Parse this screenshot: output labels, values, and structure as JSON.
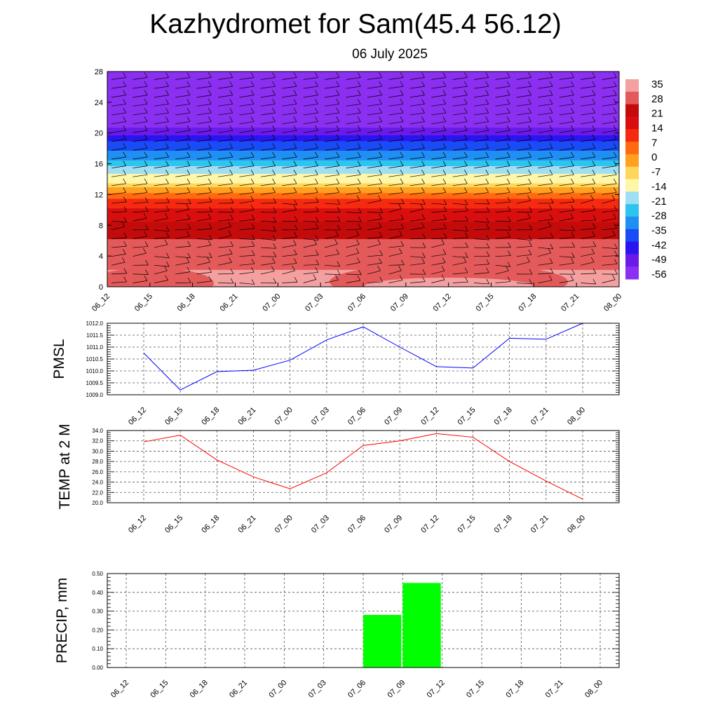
{
  "title": "Kazhydromet for Sam(45.4 56.12)",
  "subtitle": "06 July 2025",
  "x_ticks": [
    "06_12",
    "06_15",
    "06_18",
    "06_21",
    "07_00",
    "07_03",
    "07_06",
    "07_09",
    "07_12",
    "07_15",
    "07_18",
    "07_21",
    "08_00"
  ],
  "chart_data": [
    {
      "type": "heatmap",
      "name": "upper-air temperature cross-section with wind barbs",
      "x": [
        "06_12",
        "06_15",
        "06_18",
        "06_21",
        "07_00",
        "07_03",
        "07_06",
        "07_09",
        "07_12",
        "07_15",
        "07_18",
        "07_21",
        "08_00"
      ],
      "y_ticks": [
        0,
        4,
        8,
        12,
        16,
        20,
        24,
        28
      ],
      "ylim": [
        0,
        28
      ],
      "colorbar": {
        "labels": [
          35,
          28,
          21,
          14,
          7,
          0,
          -7,
          -14,
          -21,
          -28,
          -35,
          -42,
          -49,
          -56
        ],
        "range": [
          -60,
          39
        ],
        "colors": [
          "#8b2ff0",
          "#6a1be8",
          "#2a14f0",
          "#1a4cf5",
          "#1f8ff2",
          "#2dc4f0",
          "#9fdff3",
          "#fff7a8",
          "#ffd55a",
          "#ffa020",
          "#ff6a10",
          "#f52a10",
          "#d90f0f",
          "#c40b0b",
          "#e45a5a",
          "#f4a0a0"
        ]
      },
      "levels_description": "temperature decreasing with height; barbs on 3-hourly columns"
    },
    {
      "type": "line",
      "ylabel": "PMSL",
      "x": [
        "06_12",
        "06_15",
        "06_18",
        "06_21",
        "07_00",
        "07_03",
        "07_06",
        "07_09",
        "07_12",
        "07_15",
        "07_18",
        "07_21",
        "08_00"
      ],
      "y_ticks": [
        "1009.0",
        "1009.5",
        "1010.0",
        "1010.5",
        "1011.0",
        "1011.5",
        "1012.0"
      ],
      "ylim": [
        1009.0,
        1012.0
      ],
      "series": [
        {
          "values": [
            1010.75,
            1009.2,
            1009.97,
            1010.03,
            1010.45,
            1011.3,
            1011.85,
            1011.0,
            1010.18,
            1010.12,
            1011.37,
            1011.33,
            1012.0
          ],
          "color": "#0000ff"
        }
      ]
    },
    {
      "type": "line",
      "ylabel": "TEMP at 2 M",
      "x": [
        "06_12",
        "06_15",
        "06_18",
        "06_21",
        "07_00",
        "07_03",
        "07_06",
        "07_09",
        "07_12",
        "07_15",
        "07_18",
        "07_21",
        "08_00"
      ],
      "y_ticks": [
        "20.0",
        "22.0",
        "24.0",
        "26.0",
        "28.0",
        "30.0",
        "32.0",
        "34.0"
      ],
      "ylim": [
        20.0,
        34.0
      ],
      "series": [
        {
          "values": [
            31.8,
            33.1,
            28.3,
            25.0,
            22.7,
            25.8,
            31.1,
            32.0,
            33.4,
            32.7,
            28.0,
            24.2,
            20.7
          ],
          "color": "#ff0000"
        }
      ]
    },
    {
      "type": "bar",
      "ylabel": "PRECIP, mm",
      "x": [
        "06_12",
        "06_15",
        "06_18",
        "06_21",
        "07_00",
        "07_03",
        "07_06",
        "07_09",
        "07_12",
        "07_15",
        "07_18",
        "07_21",
        "08_00"
      ],
      "y_ticks": [
        "0.00",
        "0.10",
        "0.20",
        "0.30",
        "0.40",
        "0.50"
      ],
      "ylim": [
        0,
        0.5
      ],
      "series": [
        {
          "values": [
            0,
            0,
            0,
            0,
            0,
            0,
            0,
            0.28,
            0.45,
            0,
            0,
            0,
            0
          ],
          "color": "#00ff00"
        }
      ]
    }
  ]
}
